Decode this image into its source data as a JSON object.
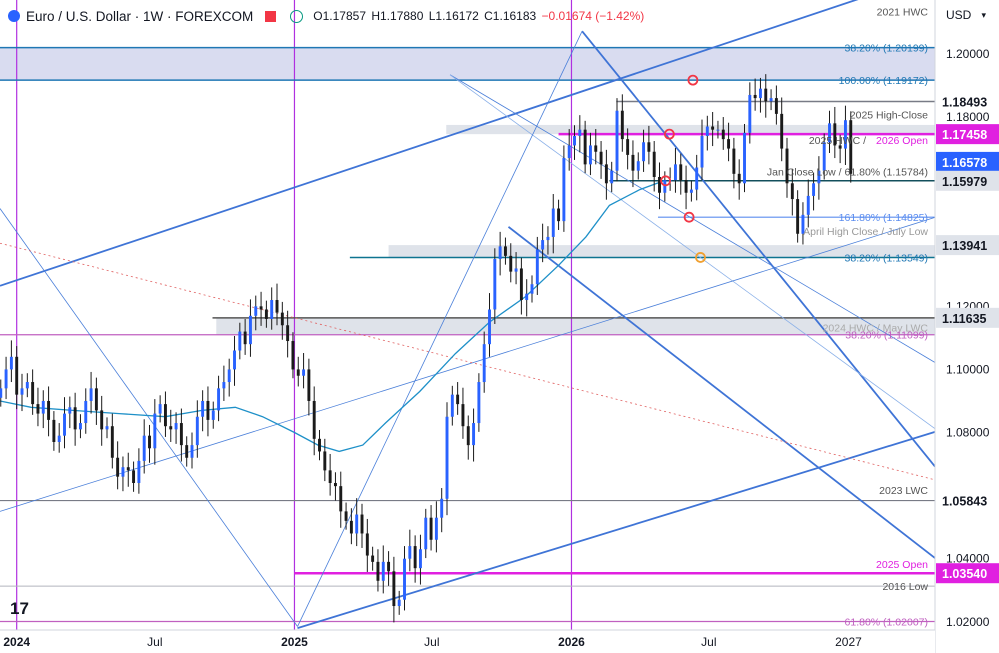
{
  "header": {
    "title": "Euro / U.S. Dollar · 1W · FOREXCOM",
    "open": "O1.17857",
    "high": "H1.17880",
    "low": "L1.16172",
    "close": "C1.16183",
    "change": "−0.01674 (−1.42%)"
  },
  "currency": "USD",
  "logo_text": "17",
  "colors": {
    "accent": "#2962ff",
    "magenta": "#e020e0",
    "down": "#f23645",
    "up": "#089981",
    "channel": "#3f74d6"
  },
  "chart_data": {
    "type": "candlestick",
    "y_axis": {
      "ticks": [
        "1.20000",
        "1.18000",
        "1.16000",
        "1.14000",
        "1.12000",
        "1.10000",
        "1.08000",
        "1.06000",
        "1.04000",
        "1.02000"
      ],
      "tick_values": [
        1.2,
        1.18,
        1.16,
        1.14,
        1.12,
        1.1,
        1.08,
        1.06,
        1.04,
        1.02
      ],
      "ylim": [
        1.0174,
        1.2171
      ]
    },
    "x_axis": {
      "labels": [
        "2024",
        "Jul",
        "2025",
        "Jul",
        "2026",
        "Jul",
        "2027"
      ],
      "label_dates": [
        "2024-01-01",
        "2024-07-01",
        "2025-01-01",
        "2025-07-01",
        "2026-01-01",
        "2026-07-01",
        "2027-01-01"
      ],
      "bold": [
        "2024",
        "2025",
        "2026"
      ],
      "xlim": [
        "2023-12-10",
        "2027-04-25"
      ],
      "year_lines": [
        "2024-01-01",
        "2025-01-01",
        "2026-01-01"
      ]
    },
    "price_labels": [
      {
        "text": "1.18493",
        "value": 1.18493,
        "bg": "#ffffff",
        "fg": "#131722"
      },
      {
        "text": "1.17458",
        "value": 1.17458,
        "bg": "#e020e0",
        "fg": "#ffffff"
      },
      {
        "text": "1.16578",
        "value": 1.16578,
        "bg": "#2962ff",
        "fg": "#ffffff"
      },
      {
        "text": "1.15979",
        "value": 1.15979,
        "bg": "#dfe3ea",
        "fg": "#131722"
      },
      {
        "text": "1.13941",
        "value": 1.13941,
        "bg": "#dfe3ea",
        "fg": "#131722"
      },
      {
        "text": "1.11635",
        "value": 1.11635,
        "bg": "#dfe3ea",
        "fg": "#131722"
      },
      {
        "text": "1.05843",
        "value": 1.05843,
        "bg": "#ffffff",
        "fg": "#131722"
      },
      {
        "text": "1.03540",
        "value": 1.0354,
        "bg": "#e020e0",
        "fg": "#ffffff"
      }
    ],
    "annotations": [
      {
        "text": "2021 HWC",
        "value": 1.2135,
        "color": "#555555"
      },
      {
        "text": "38.20% (1.20199)",
        "value": 1.20199,
        "color": "#1f77b4"
      },
      {
        "text": "100.00% (1.19172)",
        "value": 1.19172,
        "color": "#1f77b4"
      },
      {
        "text": "2025 High-Close",
        "value": 1.1808,
        "color": "#555555"
      },
      {
        "text": "2025 HWC / ",
        "value": 1.1728,
        "color": "#555555"
      },
      {
        "text": "2026 Open",
        "value": 1.1728,
        "color": "#e020e0"
      },
      {
        "text": "Jan Close Low / 61.80% (1.15784)",
        "value": 1.1628,
        "color": "#555555"
      },
      {
        "text": "161.80% (1.14825)",
        "value": 1.14825,
        "color": "#5b8def"
      },
      {
        "text": "April High Close / July Low",
        "value": 1.1438,
        "color": "#999999"
      },
      {
        "text": "38.20% (1.13549)",
        "value": 1.13549,
        "color": "#1f77b4"
      },
      {
        "text": "2024 HWC / May LWC",
        "value": 1.1133,
        "color": "#aaaaaa"
      },
      {
        "text": "38.20% (1.11099)",
        "value": 1.11099,
        "color": "#c060c0"
      },
      {
        "text": "2023 LWC",
        "value": 1.0617,
        "color": "#555555"
      },
      {
        "text": "2025 Open",
        "value": 1.0383,
        "color": "#e020e0"
      },
      {
        "text": "2016 Low",
        "value": 1.0313,
        "color": "#555555"
      },
      {
        "text": "61.80% (1.02007)",
        "value": 1.02007,
        "color": "#c060c0"
      }
    ],
    "zones": [
      {
        "from": 1.1917,
        "to": 1.202,
        "start": "2023-12-10",
        "color": "#d9dcf0"
      },
      {
        "from": 1.17458,
        "to": 1.1775,
        "start": "2025-07-20",
        "color": "#dfe3ea"
      },
      {
        "from": 1.1355,
        "to": 1.1394,
        "start": "2025-05-05",
        "color": "#dfe3ea"
      },
      {
        "from": 1.111,
        "to": 1.1164,
        "start": "2024-09-20",
        "color": "#dfe3ea"
      }
    ],
    "levels": [
      {
        "value": 1.202,
        "start": "2023-12-10",
        "color": "#1f77b4",
        "width": 1.5
      },
      {
        "value": 1.1917,
        "start": "2023-12-10",
        "color": "#1f77b4",
        "width": 1.5
      },
      {
        "value": 1.18493,
        "start": "2026-03-01",
        "color": "#787b86",
        "width": 1.5
      },
      {
        "value": 1.17458,
        "start": "2025-12-15",
        "color": "#e020e0",
        "width": 2.5
      },
      {
        "value": 1.15979,
        "start": "2026-02-20",
        "color": "#134f5c",
        "width": 1.5
      },
      {
        "value": 1.14825,
        "start": "2026-04-25",
        "color": "#5b8def",
        "width": 1.2
      },
      {
        "value": 1.13549,
        "start": "2025-03-15",
        "color": "#0e7490",
        "width": 1.5
      },
      {
        "value": 1.11635,
        "start": "2024-09-15",
        "color": "#555555",
        "width": 1.5
      },
      {
        "value": 1.111,
        "start": "2023-12-10",
        "color": "#c060c0",
        "width": 1.2
      },
      {
        "value": 1.05843,
        "start": "2023-12-10",
        "color": "#787b86",
        "width": 1.2
      },
      {
        "value": 1.0354,
        "start": "2025-01-01",
        "color": "#e020e0",
        "width": 2.5
      },
      {
        "value": 1.0313,
        "start": "2023-12-10",
        "color": "#b2b5be",
        "width": 1
      },
      {
        "value": 1.0201,
        "start": "2023-12-10",
        "color": "#c060c0",
        "width": 1.2
      }
    ],
    "trendlines": [
      {
        "from": [
          "2023-12-10",
          1.1265
        ],
        "to": [
          "2027-04-25",
          1.2255
        ],
        "color": "#3f74d6",
        "width": 1.8
      },
      {
        "from": [
          "2025-01-05",
          1.018
        ],
        "to": [
          "2027-04-25",
          1.0802
        ],
        "color": "#3f74d6",
        "width": 1.8
      },
      {
        "from": [
          "2026-01-15",
          1.2072
        ],
        "to": [
          "2027-04-25",
          1.0692
        ],
        "color": "#3f74d6",
        "width": 1.8
      },
      {
        "from": [
          "2025-10-10",
          1.1452
        ],
        "to": [
          "2027-04-25",
          1.0402
        ],
        "color": "#3f74d6",
        "width": 1.8
      },
      {
        "from": [
          "2025-07-25",
          1.1934
        ],
        "to": [
          "2027-04-25",
          1.1022
        ],
        "color": "#4a7fd9",
        "width": 0.8
      },
      {
        "from": [
          "2025-07-25",
          1.1934
        ],
        "to": [
          "2027-04-25",
          1.0812
        ],
        "color": "#8ab0e8",
        "width": 0.8
      },
      {
        "from": [
          "2023-12-10",
          1.151
        ],
        "to": [
          "2025-01-05",
          1.0185
        ],
        "color": "#4a7fd9",
        "width": 0.8
      },
      {
        "from": [
          "2025-01-05",
          1.0185
        ],
        "to": [
          "2026-01-15",
          1.2072
        ],
        "color": "#4a7fd9",
        "width": 0.8
      },
      {
        "from": [
          "2023-12-10",
          1.055
        ],
        "to": [
          "2027-04-25",
          1.1482
        ],
        "color": "#4a7fd9",
        "width": 0.8
      },
      {
        "from": [
          "2023-12-10",
          1.14
        ],
        "to": [
          "2027-04-25",
          1.065
        ],
        "color": "#e06060",
        "width": 0.8,
        "dash": "2,3"
      }
    ],
    "moving_average": {
      "color": "#1e90c8",
      "points": [
        [
          "2023-12-10",
          1.09
        ],
        [
          "2024-01-20",
          1.088
        ],
        [
          "2024-03-15",
          1.087
        ],
        [
          "2024-05-15",
          1.086
        ],
        [
          "2024-07-15",
          1.085
        ],
        [
          "2024-09-01",
          1.087
        ],
        [
          "2024-10-15",
          1.088
        ],
        [
          "2024-11-20",
          1.085
        ],
        [
          "2025-01-01",
          1.08
        ],
        [
          "2025-02-01",
          1.076
        ],
        [
          "2025-03-01",
          1.074
        ],
        [
          "2025-04-01",
          1.076
        ],
        [
          "2025-05-01",
          1.083
        ],
        [
          "2025-06-15",
          1.093
        ],
        [
          "2025-08-01",
          1.105
        ],
        [
          "2025-09-15",
          1.115
        ],
        [
          "2025-11-01",
          1.123
        ],
        [
          "2025-12-15",
          1.133
        ],
        [
          "2026-01-20",
          1.142
        ],
        [
          "2026-02-20",
          1.152
        ],
        [
          "2026-04-01",
          1.157
        ],
        [
          "2026-05-05",
          1.16
        ]
      ]
    },
    "markers": [
      {
        "date": "2026-06-10",
        "value": 1.1917,
        "color": "#f23645"
      },
      {
        "date": "2026-05-10",
        "value": 1.17458,
        "color": "#f23645"
      },
      {
        "date": "2026-05-05",
        "value": 1.15979,
        "color": "#f23645"
      },
      {
        "date": "2026-06-05",
        "value": 1.14825,
        "color": "#f23645"
      },
      {
        "date": "2026-06-20",
        "value": 1.13549,
        "color": "#f0a030"
      }
    ],
    "candles": {
      "start": "2023-12-11",
      "step_days": 7,
      "closes": [
        1.094,
        1.1,
        1.104,
        1.092,
        1.094,
        1.096,
        1.089,
        1.086,
        1.09,
        1.084,
        1.077,
        1.079,
        1.086,
        1.088,
        1.081,
        1.083,
        1.09,
        1.094,
        1.087,
        1.081,
        1.082,
        1.072,
        1.066,
        1.069,
        1.068,
        1.064,
        1.071,
        1.079,
        1.075,
        1.086,
        1.089,
        1.082,
        1.081,
        1.083,
        1.076,
        1.072,
        1.076,
        1.085,
        1.09,
        1.084,
        1.087,
        1.094,
        1.096,
        1.1,
        1.106,
        1.112,
        1.108,
        1.117,
        1.12,
        1.119,
        1.116,
        1.122,
        1.118,
        1.114,
        1.109,
        1.1,
        1.098,
        1.1,
        1.09,
        1.078,
        1.074,
        1.068,
        1.064,
        1.063,
        1.055,
        1.052,
        1.048,
        1.054,
        1.048,
        1.041,
        1.039,
        1.033,
        1.039,
        1.036,
        1.025,
        1.027,
        1.04,
        1.044,
        1.037,
        1.043,
        1.053,
        1.046,
        1.053,
        1.059,
        1.085,
        1.092,
        1.089,
        1.082,
        1.076,
        1.083,
        1.096,
        1.108,
        1.119,
        1.135,
        1.139,
        1.136,
        1.131,
        1.132,
        1.122,
        1.124,
        1.127,
        1.138,
        1.141,
        1.142,
        1.151,
        1.147,
        1.167,
        1.171,
        1.174,
        1.176,
        1.165,
        1.171,
        1.169,
        1.165,
        1.159,
        1.163,
        1.182,
        1.173,
        1.168,
        1.163,
        1.166,
        1.172,
        1.169,
        1.161,
        1.156,
        1.16,
        1.16,
        1.165,
        1.16,
        1.156,
        1.157,
        1.164,
        1.174,
        1.177,
        1.176,
        1.176,
        1.173,
        1.17,
        1.162,
        1.159,
        1.175,
        1.187,
        1.186,
        1.189,
        1.185,
        1.186,
        1.181,
        1.17,
        1.159,
        1.154,
        1.143,
        1.149,
        1.155,
        1.159,
        1.163,
        1.172,
        1.178,
        1.171,
        1.17,
        1.179,
        1.162
      ]
    }
  }
}
